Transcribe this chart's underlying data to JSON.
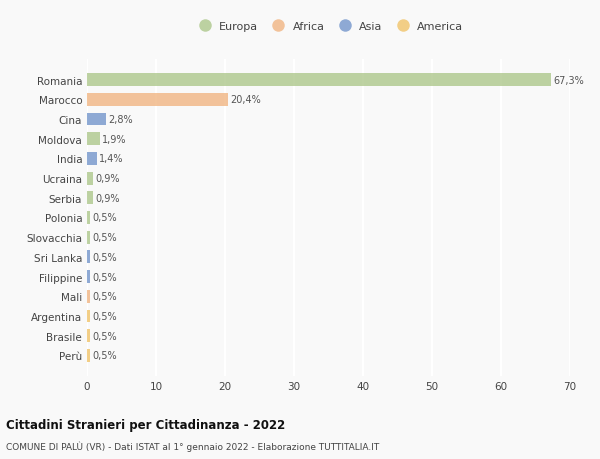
{
  "categories": [
    "Romania",
    "Marocco",
    "Cina",
    "Moldova",
    "India",
    "Ucraina",
    "Serbia",
    "Polonia",
    "Slovacchia",
    "Sri Lanka",
    "Filippine",
    "Mali",
    "Argentina",
    "Brasile",
    "Perù"
  ],
  "values": [
    67.3,
    20.4,
    2.8,
    1.9,
    1.4,
    0.9,
    0.9,
    0.5,
    0.5,
    0.5,
    0.5,
    0.5,
    0.5,
    0.5,
    0.5
  ],
  "labels": [
    "67,3%",
    "20,4%",
    "2,8%",
    "1,9%",
    "1,4%",
    "0,9%",
    "0,9%",
    "0,5%",
    "0,5%",
    "0,5%",
    "0,5%",
    "0,5%",
    "0,5%",
    "0,5%",
    "0,5%"
  ],
  "colors": [
    "#a8c484",
    "#f0b07a",
    "#6a8fc8",
    "#a8c484",
    "#6a8fc8",
    "#a8c484",
    "#a8c484",
    "#a8c484",
    "#a8c484",
    "#6a8fc8",
    "#6a8fc8",
    "#f0b07a",
    "#f0c060",
    "#f0c060",
    "#f0c060"
  ],
  "continent_colors": {
    "Europa": "#a8c484",
    "Africa": "#f0b07a",
    "Asia": "#6a8fc8",
    "America": "#f0c060"
  },
  "legend_labels": [
    "Europa",
    "Africa",
    "Asia",
    "America"
  ],
  "xlim": [
    0,
    70
  ],
  "xticks": [
    0,
    10,
    20,
    30,
    40,
    50,
    60,
    70
  ],
  "title": "Cittadini Stranieri per Cittadinanza - 2022",
  "subtitle": "COMUNE DI PALÙ (VR) - Dati ISTAT al 1° gennaio 2022 - Elaborazione TUTTITALIA.IT",
  "bg_color": "#f9f9f9",
  "grid_color": "#ffffff",
  "bar_alpha": 0.75,
  "bar_height": 0.65
}
